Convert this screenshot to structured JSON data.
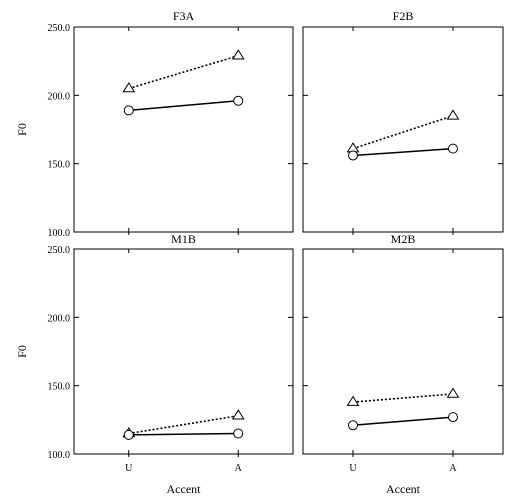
{
  "chart_data": [
    {
      "type": "line",
      "title": "F3A",
      "xlabel": "",
      "ylabel": "F0",
      "categories": [
        "U",
        "A"
      ],
      "ylim": [
        100,
        250
      ],
      "yticks": [
        "100.0",
        "150.0",
        "200.0",
        "250.0"
      ],
      "series": [
        {
          "marker": "triangle",
          "line_style": "dotted",
          "values": [
            205,
            229
          ]
        },
        {
          "marker": "circle",
          "line_style": "solid",
          "values": [
            189,
            196
          ]
        }
      ]
    },
    {
      "type": "line",
      "title": "F2B",
      "xlabel": "",
      "ylabel": "",
      "categories": [
        "U",
        "A"
      ],
      "ylim": [
        100,
        250
      ],
      "series": [
        {
          "marker": "triangle",
          "line_style": "dotted",
          "values": [
            161,
            185
          ]
        },
        {
          "marker": "circle",
          "line_style": "solid",
          "values": [
            156,
            161
          ]
        }
      ]
    },
    {
      "type": "line",
      "title": "M1B",
      "xlabel": "Accent",
      "ylabel": "F0",
      "categories": [
        "U",
        "A"
      ],
      "ylim": [
        100,
        250
      ],
      "yticks": [
        "100.0",
        "150.0",
        "200.0",
        "250.0"
      ],
      "series": [
        {
          "marker": "triangle",
          "line_style": "dotted",
          "values": [
            115,
            128
          ]
        },
        {
          "marker": "circle",
          "line_style": "solid",
          "values": [
            114,
            115
          ]
        }
      ]
    },
    {
      "type": "line",
      "title": "M2B",
      "xlabel": "Accent",
      "ylabel": "",
      "categories": [
        "U",
        "A"
      ],
      "ylim": [
        100,
        250
      ],
      "series": [
        {
          "marker": "triangle",
          "line_style": "dotted",
          "values": [
            138,
            144
          ]
        },
        {
          "marker": "circle",
          "line_style": "solid",
          "values": [
            121,
            127
          ]
        }
      ]
    }
  ]
}
